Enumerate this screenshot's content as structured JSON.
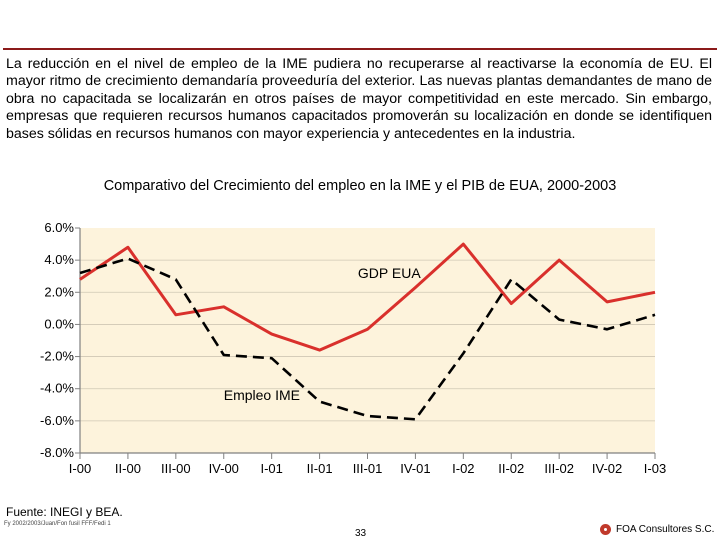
{
  "intro_text": "La reducción en el nivel de empleo de la IME pudiera no recuperarse al reactivarse la economía de EU. El mayor ritmo de crecimiento demandaría proveeduría del exterior. Las nuevas plantas demandantes de mano de obra no capacitada se localizarán en otros países de mayor competitividad en este mercado. Sin embargo, empresas que requieren recursos humanos capacitados promoverán su localización en donde se identifiquen bases sólidas en recursos humanos con mayor experiencia y antecedentes en la industria.",
  "colors": {
    "accent": "#8b1a1a",
    "plot_bg": "#fdf3dc",
    "gdp_line": "#d9302c",
    "employ_line": "#000000",
    "axis": "#808080"
  },
  "chart_data": {
    "type": "line",
    "title": "Comparativo del Crecimiento del empleo en la IME y el PIB de EUA, 2000-2003",
    "categories": [
      "I-00",
      "II-00",
      "III-00",
      "IV-00",
      "I-01",
      "II-01",
      "III-01",
      "IV-01",
      "I-02",
      "II-02",
      "III-02",
      "IV-02",
      "I-03"
    ],
    "y_ticks": [
      "6.0%",
      "4.0%",
      "2.0%",
      "0.0%",
      "-2.0%",
      "-4.0%",
      "-6.0%",
      "-8.0%"
    ],
    "ylim": [
      -8,
      6
    ],
    "series": [
      {
        "name": "GDP EUA",
        "style": "solid",
        "values": [
          2.8,
          4.8,
          0.6,
          1.1,
          -0.6,
          -1.6,
          -0.3,
          2.3,
          5.0,
          1.3,
          4.0,
          1.4,
          2.0
        ]
      },
      {
        "name": "Empleo IME",
        "style": "dashed",
        "values": [
          3.2,
          4.1,
          2.8,
          -1.9,
          -2.1,
          -4.8,
          -5.7,
          -5.9,
          -1.8,
          2.8,
          0.3,
          -0.3,
          0.6
        ]
      }
    ],
    "annotations": [
      "GDP EUA",
      "Empleo IME"
    ]
  },
  "footer": {
    "source": "Fuente: INEGI y BEA.",
    "file_ref": "Fy 2002/2003/Juan/Fon fusil FFF/Fedi 1",
    "page": "33",
    "brand": "FOA Consultores S.C."
  }
}
